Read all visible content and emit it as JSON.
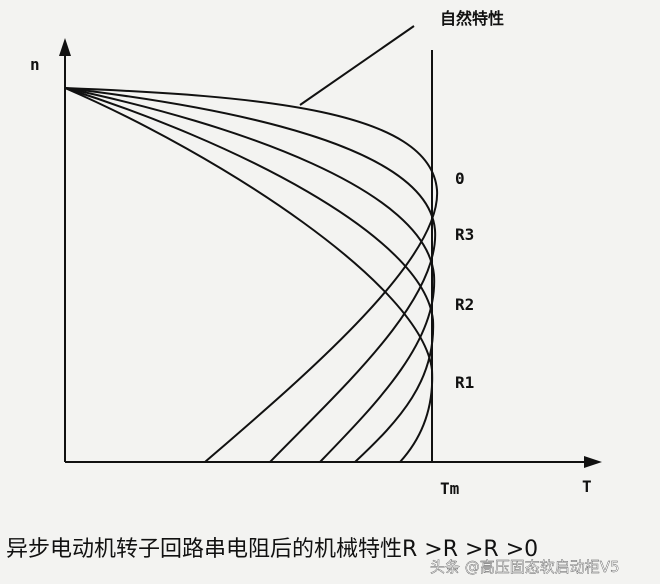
{
  "labels": {
    "natural": "自然特性",
    "y_axis": "n",
    "curve_0": "0",
    "curve_r3": "R3",
    "curve_r2": "R2",
    "curve_r1": "R1",
    "tm": "Tm",
    "x_axis": "T"
  },
  "caption": "异步电动机转子回路串电阻后的机械特性R >R >R >0",
  "watermark": "头条 @高压固态软启动柜V5"
}
